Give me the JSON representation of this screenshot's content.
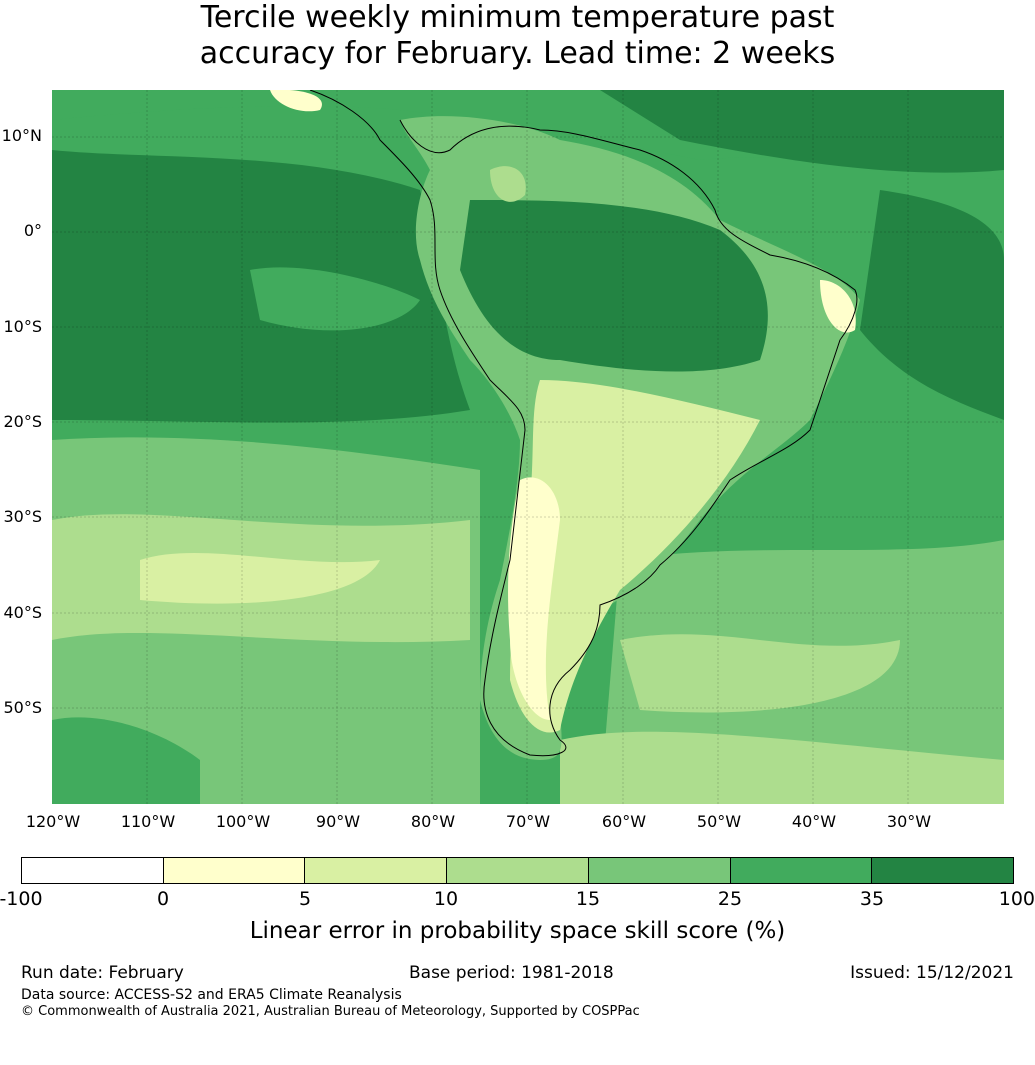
{
  "title": {
    "line1": "Tercile weekly minimum temperature past",
    "line2": "accuracy for February. Lead time: 2 weeks"
  },
  "map": {
    "lat_labels": [
      "10°N",
      "0°",
      "10°S",
      "20°S",
      "30°S",
      "40°S",
      "50°S"
    ],
    "lon_labels": [
      "120°W",
      "110°W",
      "100°W",
      "90°W",
      "80°W",
      "70°W",
      "60°W",
      "50°W",
      "40°W",
      "30°W"
    ],
    "colors": {
      "c0": "#ffffff",
      "c1": "#ffffcc",
      "c2": "#d9f0a3",
      "c3": "#addd8e",
      "c4": "#78c679",
      "c5": "#41ab5d",
      "c6": "#238443"
    }
  },
  "colorbar": {
    "ticks": [
      "-100",
      "0",
      "5",
      "10",
      "15",
      "25",
      "35",
      "100"
    ],
    "label": "Linear error in probability space skill score (%)"
  },
  "footer": {
    "run_date": "Run date: February",
    "base_period": "Base period: 1981-2018",
    "issued": "Issued: 15/12/2021",
    "data_source": "Data source: ACCESS-S2 and ERA5 Climate Reanalysis",
    "copyright": "© Commonwealth of Australia 2021, Australian Bureau of Meteorology, Supported by COSPPac"
  }
}
